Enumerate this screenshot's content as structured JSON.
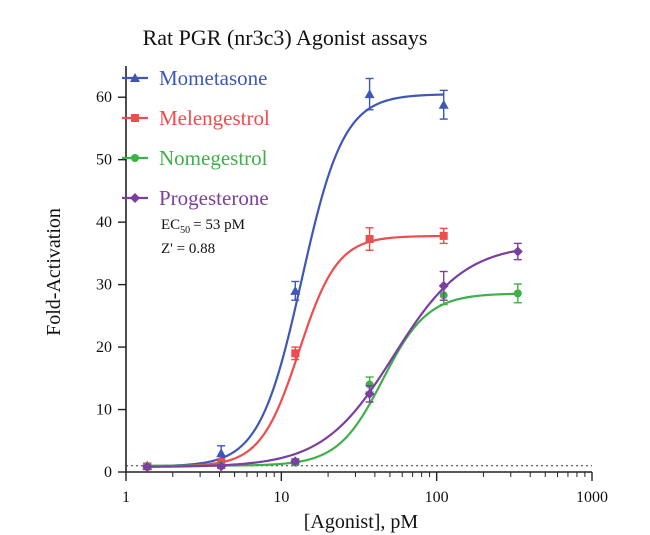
{
  "chart_data": {
    "type": "scatter",
    "title": "Rat PGR (nr3c3) Agonist assays",
    "xlabel": "[Agonist], pM",
    "ylabel": "Fold-Activation",
    "x_scale": "log",
    "xlim": [
      1,
      1000
    ],
    "ylim": [
      0,
      65
    ],
    "x_ticks": [
      "1",
      "10",
      "100",
      "1000"
    ],
    "y_ticks": [
      "0",
      "10",
      "20",
      "30",
      "40",
      "50",
      "60"
    ],
    "grid": false,
    "legend_position": "top-left",
    "baseline": {
      "y": 1,
      "style": "dotted"
    },
    "annotation": {
      "ec50_prefix": "EC",
      "ec50_subscript": "50",
      "ec50_value": "= 53 pM",
      "z_prime": "Z' = 0.88"
    },
    "series": [
      {
        "name": "Mometasone",
        "color": "#3f57b5",
        "marker": "triangle",
        "x": [
          1.37,
          4.1,
          12.3,
          37,
          111
        ],
        "y": [
          1.0,
          3.0,
          29.0,
          60.5,
          58.8
        ],
        "err": [
          0.4,
          1.2,
          1.5,
          2.5,
          2.3
        ],
        "fit": {
          "bottom": 0.9,
          "top": 60.5,
          "ec50": 13.5,
          "hill": 3.2
        }
      },
      {
        "name": "Melengestrol",
        "color": "#ee4d4d",
        "marker": "square",
        "x": [
          1.37,
          4.1,
          12.3,
          37,
          111
        ],
        "y": [
          0.9,
          1.5,
          19.0,
          37.3,
          37.8
        ],
        "err": [
          0.4,
          0.6,
          1.0,
          1.8,
          1.2
        ],
        "fit": {
          "bottom": 0.9,
          "top": 37.8,
          "ec50": 13.0,
          "hill": 3.5
        }
      },
      {
        "name": "Nomegestrol",
        "color": "#3faf4a",
        "marker": "circle",
        "x": [
          1.37,
          4.1,
          12.3,
          37,
          111,
          333
        ],
        "y": [
          0.9,
          1.0,
          1.5,
          14.0,
          28.3,
          28.6
        ],
        "err": [
          0.3,
          0.3,
          0.4,
          1.2,
          1.5,
          1.5
        ],
        "fit": {
          "bottom": 1.0,
          "top": 28.6,
          "ec50": 45.0,
          "hill": 3.0
        }
      },
      {
        "name": "Progesterone",
        "color": "#7b3fa0",
        "marker": "diamond",
        "x": [
          1.37,
          4.1,
          12.3,
          37,
          111,
          333
        ],
        "y": [
          0.8,
          0.9,
          1.7,
          12.5,
          29.8,
          35.3
        ],
        "err": [
          0.3,
          0.3,
          0.4,
          1.3,
          2.3,
          1.3
        ],
        "fit": {
          "bottom": 0.8,
          "top": 36.5,
          "ec50": 53.0,
          "hill": 1.9
        }
      }
    ]
  }
}
